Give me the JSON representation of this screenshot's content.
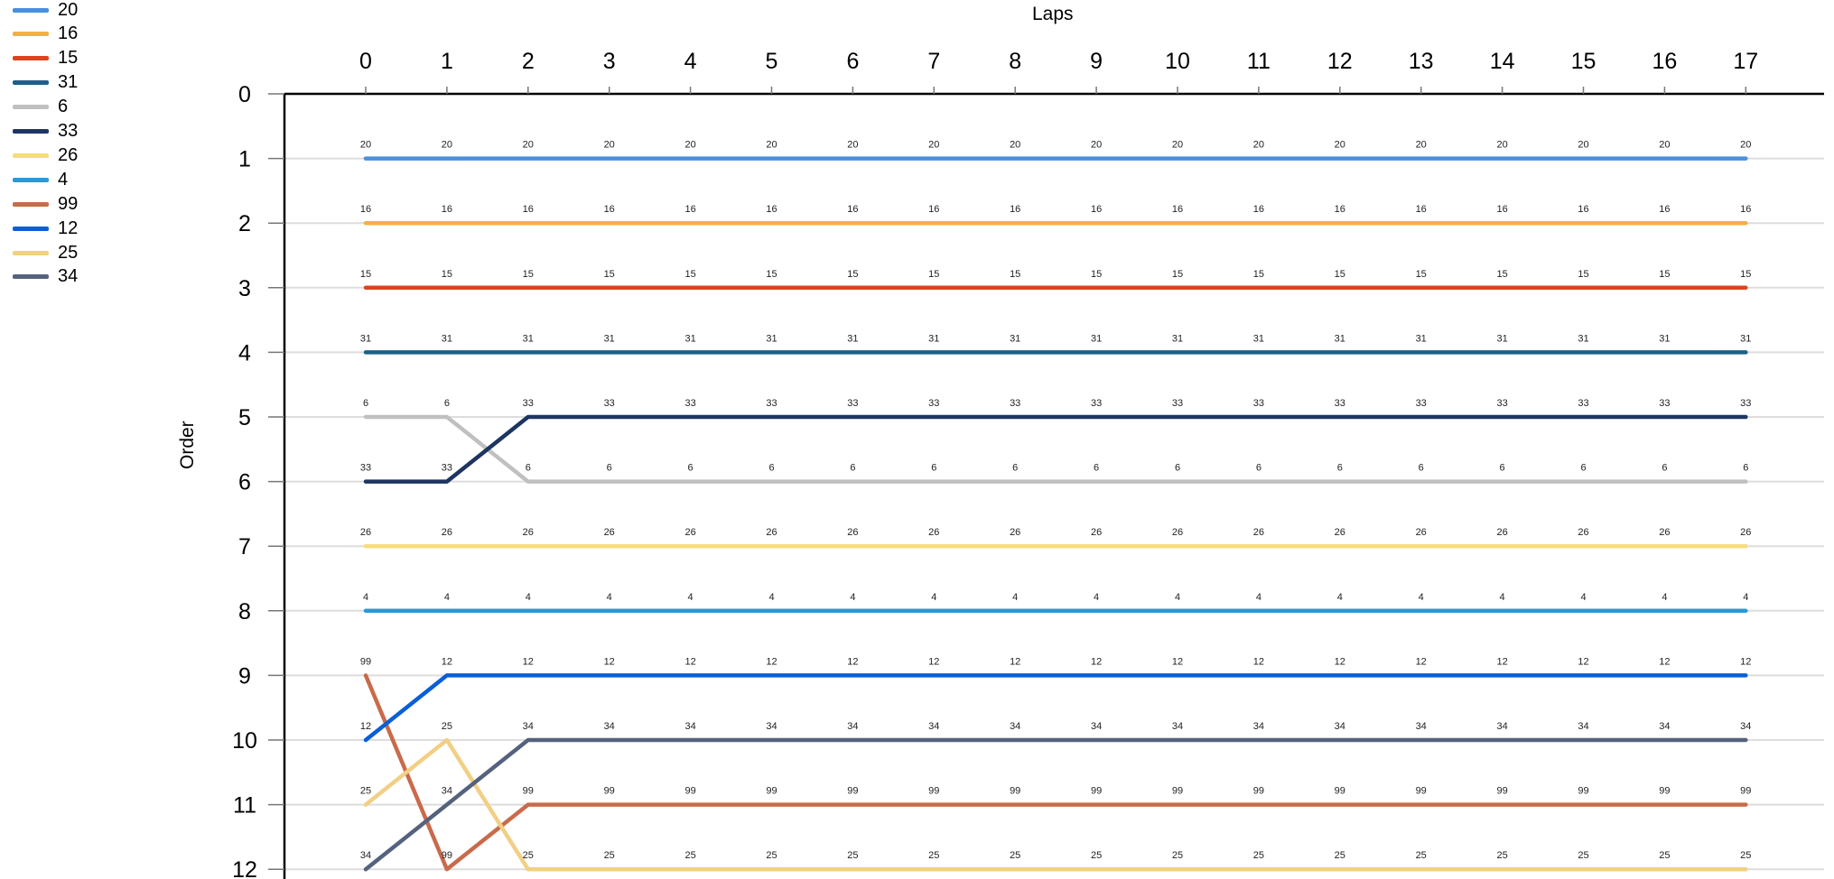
{
  "chart_data": {
    "type": "line",
    "subtype": "position-changes",
    "xlabel": "Laps",
    "ylabel": "Order",
    "x": [
      0,
      1,
      2,
      3,
      4,
      5,
      6,
      7,
      8,
      9,
      10,
      11,
      12,
      13,
      14,
      15,
      16,
      17
    ],
    "xlim": [
      0,
      17
    ],
    "ylim": [
      0,
      12
    ],
    "y_axis_inverted": true,
    "y_ticks": [
      0,
      1,
      2,
      3,
      4,
      5,
      6,
      7,
      8,
      9,
      10,
      11,
      12
    ],
    "grid": "horizontal",
    "legend_position": "top-left",
    "point_labels": "car number above each point",
    "series": [
      {
        "name": "20",
        "color": "#4a8fdc",
        "values": [
          1,
          1,
          1,
          1,
          1,
          1,
          1,
          1,
          1,
          1,
          1,
          1,
          1,
          1,
          1,
          1,
          1,
          1
        ]
      },
      {
        "name": "16",
        "color": "#f4b042",
        "values": [
          2,
          2,
          2,
          2,
          2,
          2,
          2,
          2,
          2,
          2,
          2,
          2,
          2,
          2,
          2,
          2,
          2,
          2
        ]
      },
      {
        "name": "15",
        "color": "#d9461e",
        "values": [
          3,
          3,
          3,
          3,
          3,
          3,
          3,
          3,
          3,
          3,
          3,
          3,
          3,
          3,
          3,
          3,
          3,
          3
        ]
      },
      {
        "name": "31",
        "color": "#1b6189",
        "values": [
          4,
          4,
          4,
          4,
          4,
          4,
          4,
          4,
          4,
          4,
          4,
          4,
          4,
          4,
          4,
          4,
          4,
          4
        ]
      },
      {
        "name": "6",
        "color": "#c0c0c0",
        "values": [
          5,
          5,
          6,
          6,
          6,
          6,
          6,
          6,
          6,
          6,
          6,
          6,
          6,
          6,
          6,
          6,
          6,
          6
        ]
      },
      {
        "name": "33",
        "color": "#1d3560",
        "values": [
          6,
          6,
          5,
          5,
          5,
          5,
          5,
          5,
          5,
          5,
          5,
          5,
          5,
          5,
          5,
          5,
          5,
          5
        ]
      },
      {
        "name": "26",
        "color": "#f6dc7e",
        "values": [
          7,
          7,
          7,
          7,
          7,
          7,
          7,
          7,
          7,
          7,
          7,
          7,
          7,
          7,
          7,
          7,
          7,
          7
        ]
      },
      {
        "name": "4",
        "color": "#2899d9",
        "values": [
          8,
          8,
          8,
          8,
          8,
          8,
          8,
          8,
          8,
          8,
          8,
          8,
          8,
          8,
          8,
          8,
          8,
          8
        ]
      },
      {
        "name": "99",
        "color": "#c96a4a",
        "values": [
          9,
          12,
          11,
          11,
          11,
          11,
          11,
          11,
          11,
          11,
          11,
          11,
          11,
          11,
          11,
          11,
          11,
          11
        ]
      },
      {
        "name": "12",
        "color": "#0a5fd6",
        "values": [
          10,
          9,
          9,
          9,
          9,
          9,
          9,
          9,
          9,
          9,
          9,
          9,
          9,
          9,
          9,
          9,
          9,
          9
        ]
      },
      {
        "name": "25",
        "color": "#f1cf84",
        "values": [
          11,
          10,
          12,
          12,
          12,
          12,
          12,
          12,
          12,
          12,
          12,
          12,
          12,
          12,
          12,
          12,
          12,
          12
        ]
      },
      {
        "name": "34",
        "color": "#55627d",
        "values": [
          12,
          11,
          10,
          10,
          10,
          10,
          10,
          10,
          10,
          10,
          10,
          10,
          10,
          10,
          10,
          10,
          10,
          10
        ]
      }
    ]
  }
}
